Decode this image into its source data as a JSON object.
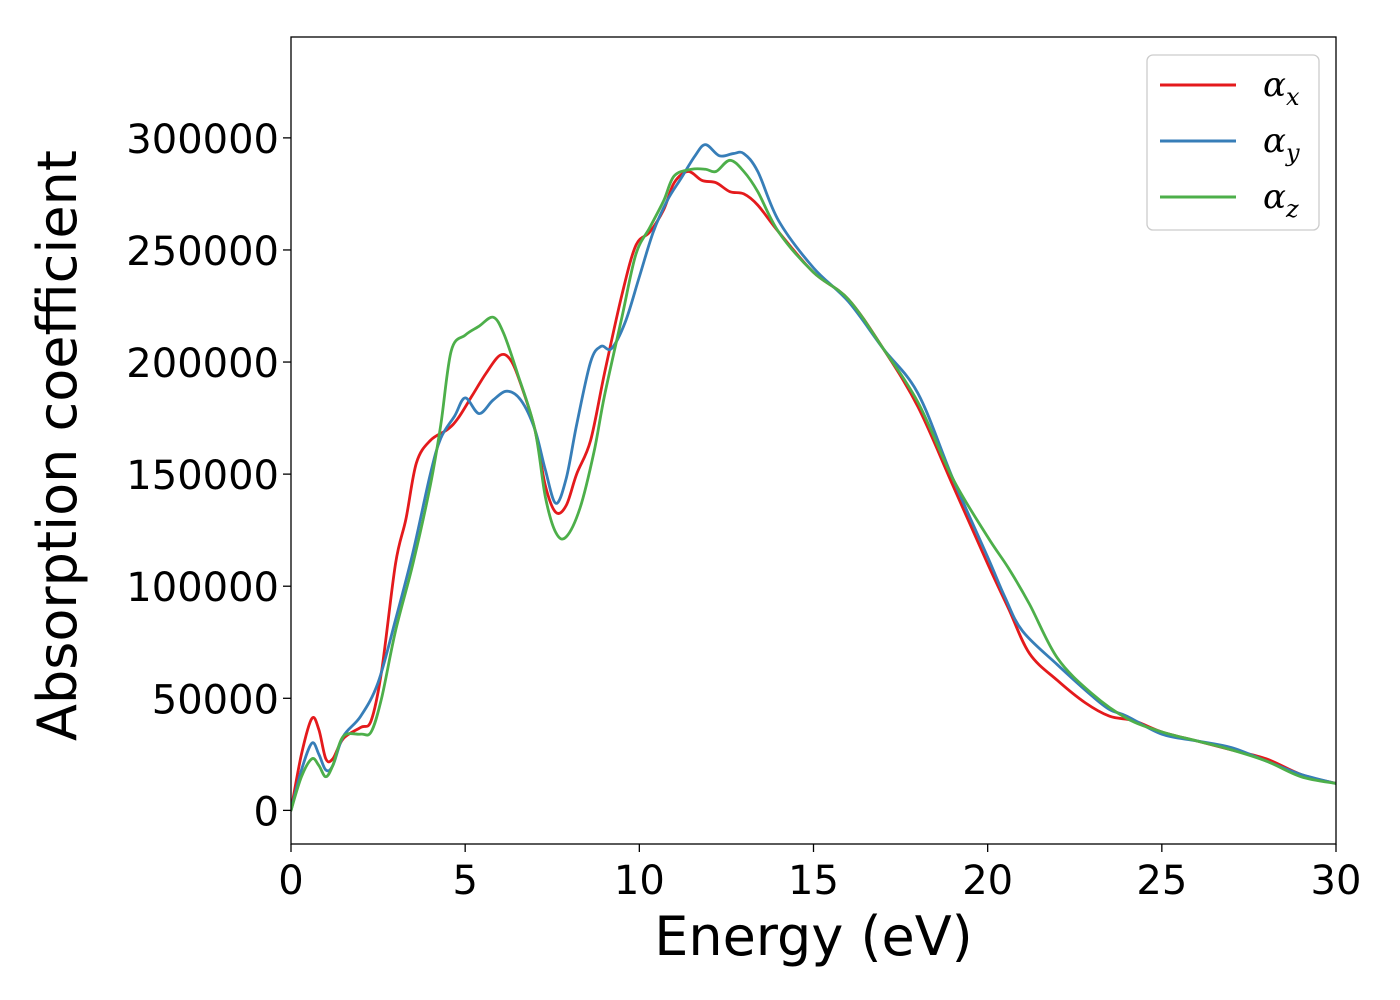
{
  "chart_data": {
    "type": "line",
    "title": "",
    "xlabel": "Energy (eV)",
    "ylabel": "Absorption coefficient",
    "xlim": [
      0,
      30
    ],
    "ylim": [
      -15000,
      345000
    ],
    "xticks": [
      0,
      5,
      10,
      15,
      20,
      25,
      30
    ],
    "yticks": [
      0,
      50000,
      100000,
      150000,
      200000,
      250000,
      300000
    ],
    "grid": false,
    "legend_position": "top-right",
    "series": [
      {
        "name": "αx",
        "symbol": "α",
        "subscript": "x",
        "color": "#e41a1c",
        "points": [
          [
            0,
            0
          ],
          [
            0.3,
            25000
          ],
          [
            0.6,
            41000
          ],
          [
            0.8,
            36000
          ],
          [
            1.0,
            23000
          ],
          [
            1.2,
            23000
          ],
          [
            1.5,
            32000
          ],
          [
            2.0,
            37000
          ],
          [
            2.3,
            40000
          ],
          [
            2.6,
            62000
          ],
          [
            3.0,
            110000
          ],
          [
            3.3,
            130000
          ],
          [
            3.6,
            155000
          ],
          [
            4.0,
            165000
          ],
          [
            4.5,
            170000
          ],
          [
            4.8,
            175000
          ],
          [
            5.2,
            185000
          ],
          [
            5.6,
            195000
          ],
          [
            6.0,
            203000
          ],
          [
            6.3,
            201000
          ],
          [
            6.6,
            190000
          ],
          [
            7.0,
            170000
          ],
          [
            7.3,
            145000
          ],
          [
            7.6,
            133000
          ],
          [
            7.9,
            136000
          ],
          [
            8.2,
            150000
          ],
          [
            8.6,
            165000
          ],
          [
            9.0,
            195000
          ],
          [
            9.5,
            230000
          ],
          [
            9.9,
            252000
          ],
          [
            10.3,
            258000
          ],
          [
            10.7,
            268000
          ],
          [
            11.0,
            280000
          ],
          [
            11.4,
            285000
          ],
          [
            11.8,
            281000
          ],
          [
            12.2,
            280000
          ],
          [
            12.6,
            276000
          ],
          [
            13.0,
            275000
          ],
          [
            13.4,
            270000
          ],
          [
            14.0,
            258000
          ],
          [
            15.0,
            240000
          ],
          [
            16.0,
            228000
          ],
          [
            17.0,
            206000
          ],
          [
            18.0,
            180000
          ],
          [
            19.0,
            145000
          ],
          [
            20.0,
            110000
          ],
          [
            20.6,
            90000
          ],
          [
            21.2,
            70000
          ],
          [
            22.0,
            58000
          ],
          [
            22.8,
            48000
          ],
          [
            23.5,
            42000
          ],
          [
            24.2,
            40000
          ],
          [
            25.0,
            35000
          ],
          [
            26.0,
            31000
          ],
          [
            27.0,
            27000
          ],
          [
            28.0,
            23000
          ],
          [
            29.0,
            16000
          ],
          [
            30.0,
            12000
          ]
        ]
      },
      {
        "name": "αy",
        "symbol": "α",
        "subscript": "y",
        "color": "#377eb8",
        "points": [
          [
            0,
            0
          ],
          [
            0.3,
            18000
          ],
          [
            0.6,
            30000
          ],
          [
            0.8,
            25000
          ],
          [
            1.0,
            18000
          ],
          [
            1.2,
            20000
          ],
          [
            1.5,
            33000
          ],
          [
            2.0,
            42000
          ],
          [
            2.5,
            57000
          ],
          [
            3.0,
            85000
          ],
          [
            3.5,
            115000
          ],
          [
            4.0,
            150000
          ],
          [
            4.3,
            166000
          ],
          [
            4.7,
            176000
          ],
          [
            5.0,
            184000
          ],
          [
            5.4,
            177000
          ],
          [
            5.8,
            183000
          ],
          [
            6.2,
            187000
          ],
          [
            6.6,
            183000
          ],
          [
            7.0,
            170000
          ],
          [
            7.3,
            152000
          ],
          [
            7.6,
            137000
          ],
          [
            7.9,
            148000
          ],
          [
            8.2,
            172000
          ],
          [
            8.6,
            200000
          ],
          [
            8.9,
            207000
          ],
          [
            9.2,
            206000
          ],
          [
            9.6,
            218000
          ],
          [
            10.0,
            238000
          ],
          [
            10.4,
            258000
          ],
          [
            10.8,
            272000
          ],
          [
            11.2,
            282000
          ],
          [
            11.6,
            292000
          ],
          [
            11.9,
            297000
          ],
          [
            12.3,
            292000
          ],
          [
            12.7,
            293000
          ],
          [
            13.0,
            293000
          ],
          [
            13.4,
            285000
          ],
          [
            14.0,
            263000
          ],
          [
            15.0,
            242000
          ],
          [
            16.0,
            227000
          ],
          [
            17.0,
            206000
          ],
          [
            18.0,
            186000
          ],
          [
            19.0,
            148000
          ],
          [
            20.0,
            113000
          ],
          [
            20.5,
            95000
          ],
          [
            21.0,
            80000
          ],
          [
            22.0,
            65000
          ],
          [
            23.0,
            51000
          ],
          [
            23.5,
            45000
          ],
          [
            24.0,
            42000
          ],
          [
            25.0,
            34000
          ],
          [
            26.0,
            31000
          ],
          [
            27.0,
            28000
          ],
          [
            28.0,
            22000
          ],
          [
            29.0,
            16000
          ],
          [
            30.0,
            12000
          ]
        ]
      },
      {
        "name": "αz",
        "symbol": "α",
        "subscript": "z",
        "color": "#4daf4a",
        "points": [
          [
            0,
            0
          ],
          [
            0.3,
            15000
          ],
          [
            0.6,
            23000
          ],
          [
            0.8,
            20000
          ],
          [
            1.0,
            15000
          ],
          [
            1.2,
            20000
          ],
          [
            1.5,
            33000
          ],
          [
            2.0,
            34000
          ],
          [
            2.3,
            35000
          ],
          [
            2.6,
            50000
          ],
          [
            3.0,
            80000
          ],
          [
            3.5,
            110000
          ],
          [
            4.0,
            145000
          ],
          [
            4.3,
            172000
          ],
          [
            4.6,
            205000
          ],
          [
            5.0,
            212000
          ],
          [
            5.4,
            216000
          ],
          [
            5.8,
            220000
          ],
          [
            6.1,
            213000
          ],
          [
            6.5,
            195000
          ],
          [
            7.0,
            170000
          ],
          [
            7.3,
            140000
          ],
          [
            7.6,
            124000
          ],
          [
            7.9,
            122000
          ],
          [
            8.3,
            135000
          ],
          [
            8.7,
            160000
          ],
          [
            9.0,
            185000
          ],
          [
            9.5,
            220000
          ],
          [
            9.9,
            248000
          ],
          [
            10.3,
            260000
          ],
          [
            10.7,
            272000
          ],
          [
            11.0,
            283000
          ],
          [
            11.5,
            286000
          ],
          [
            11.9,
            286000
          ],
          [
            12.2,
            285000
          ],
          [
            12.6,
            290000
          ],
          [
            13.0,
            285000
          ],
          [
            13.4,
            276000
          ],
          [
            14.0,
            258000
          ],
          [
            15.0,
            240000
          ],
          [
            16.0,
            228000
          ],
          [
            17.0,
            206000
          ],
          [
            18.0,
            182000
          ],
          [
            19.0,
            148000
          ],
          [
            20.0,
            122000
          ],
          [
            20.6,
            108000
          ],
          [
            21.2,
            92000
          ],
          [
            22.0,
            68000
          ],
          [
            23.0,
            52000
          ],
          [
            24.0,
            41000
          ],
          [
            25.0,
            35000
          ],
          [
            26.0,
            31000
          ],
          [
            27.0,
            27000
          ],
          [
            28.0,
            22000
          ],
          [
            29.0,
            15000
          ],
          [
            30.0,
            12000
          ]
        ]
      }
    ]
  }
}
